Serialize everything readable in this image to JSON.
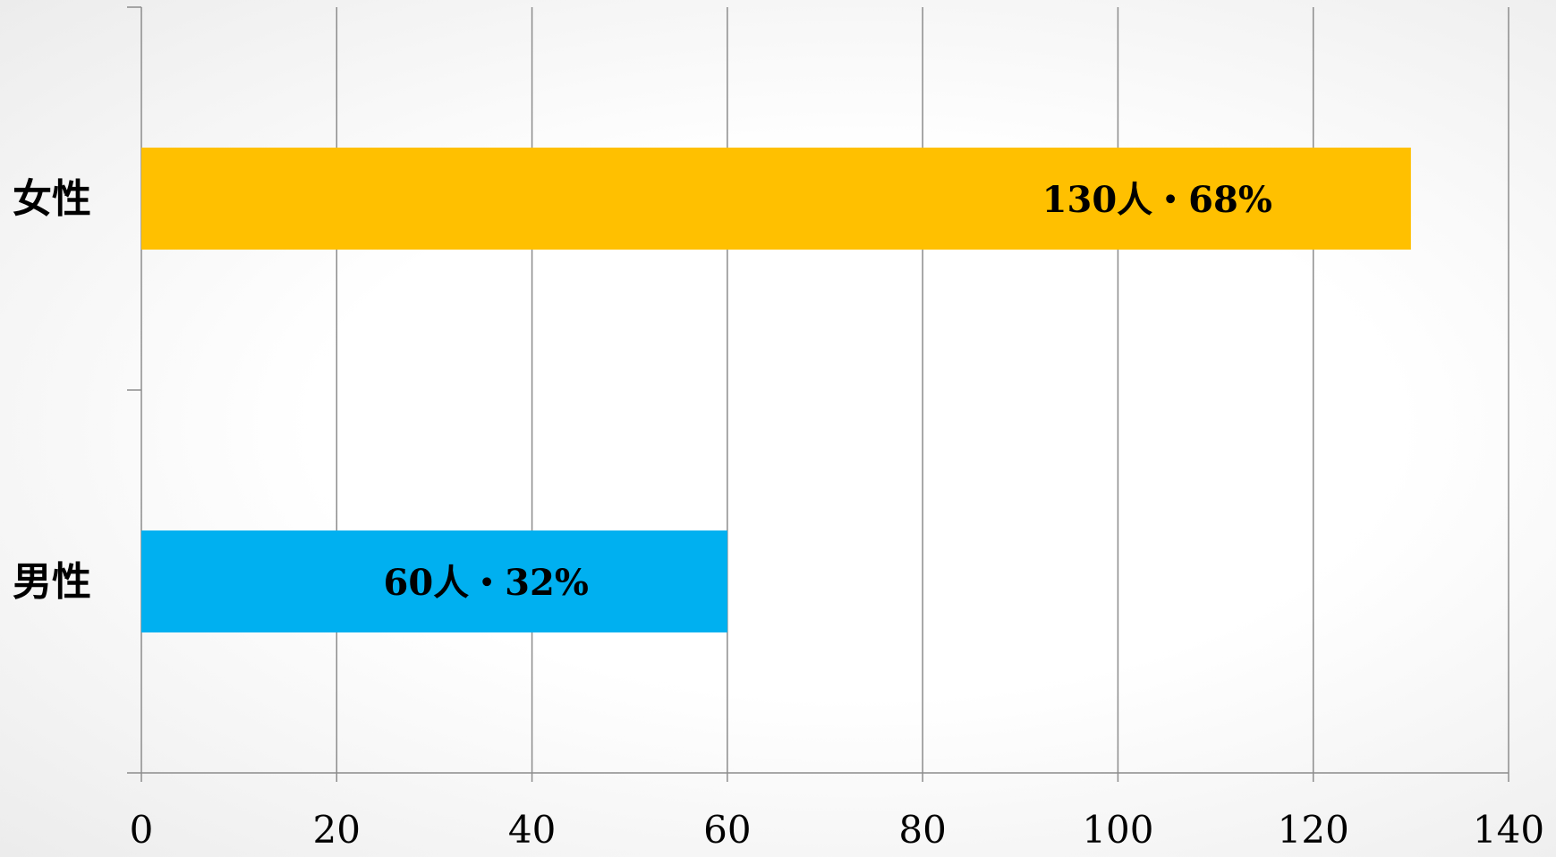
{
  "chart_data": {
    "type": "bar",
    "orientation": "horizontal",
    "categories": [
      "女性",
      "男性"
    ],
    "values": [
      130,
      60
    ],
    "data_labels": [
      "130人・68%",
      "60人・32%"
    ],
    "colors": [
      "#FFC000",
      "#00B0F0"
    ],
    "xlim": [
      0,
      140
    ],
    "x_ticks": [
      0,
      20,
      40,
      60,
      80,
      100,
      120,
      140
    ],
    "grid": true,
    "title": "",
    "xlabel": "",
    "ylabel": ""
  }
}
